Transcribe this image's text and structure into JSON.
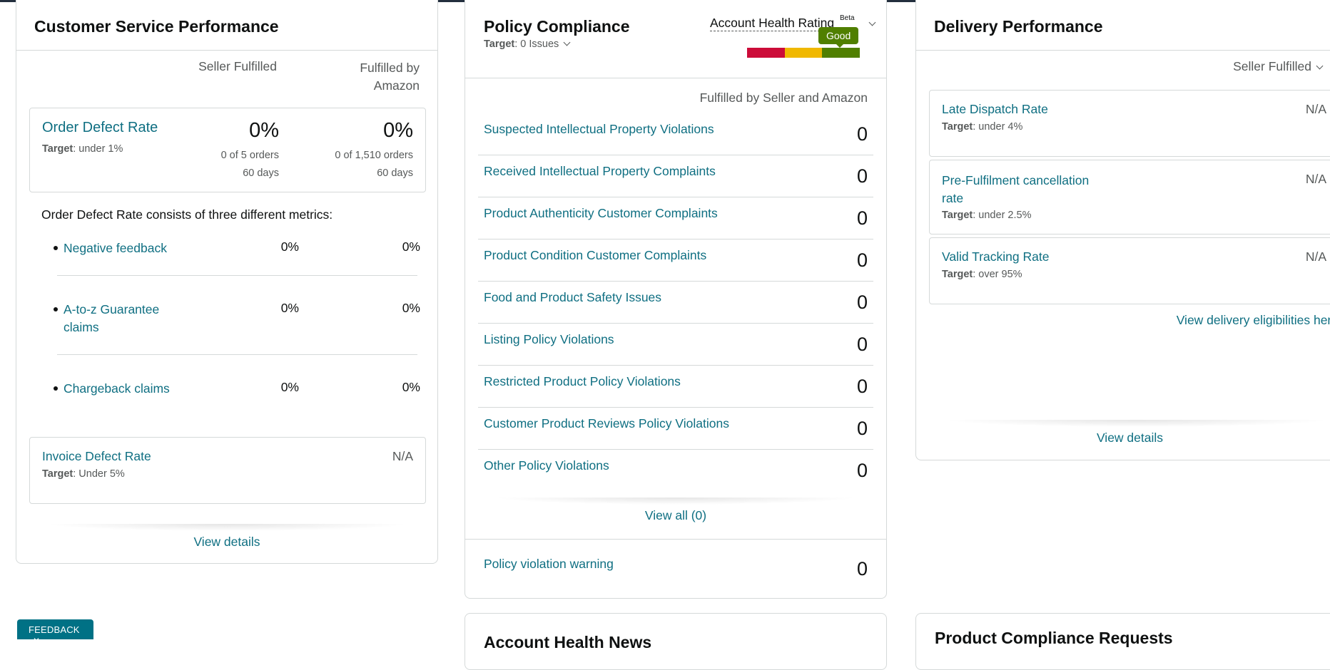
{
  "customer_service": {
    "title": "Customer Service Performance",
    "col_seller": "Seller Fulfilled",
    "col_amazon_line1": "Fulfilled by",
    "col_amazon_line2": "Amazon",
    "odr": {
      "label": "Order Defect Rate",
      "target_label": "Target",
      "target_value": ": under 1%",
      "seller_pct": "0%",
      "seller_orders": "0 of 5 orders",
      "seller_days": "60 days",
      "amazon_pct": "0%",
      "amazon_orders": "0 of 1,510 orders",
      "amazon_days": "60 days"
    },
    "consists_text": "Order Defect Rate consists of three different metrics:",
    "metrics": [
      {
        "label": "Negative feedback",
        "seller": "0%",
        "amazon": "0%"
      },
      {
        "label": "A-to-z Guarantee claims",
        "seller": "0%",
        "amazon": "0%"
      },
      {
        "label": "Chargeback claims",
        "seller": "0%",
        "amazon": "0%"
      }
    ],
    "invoice": {
      "label": "Invoice Defect Rate",
      "target_label": "Target",
      "target_value": ": Under 5%",
      "value": "N/A"
    },
    "view_details": "View details"
  },
  "policy": {
    "title": "Policy Compliance",
    "target_label": "Target",
    "target_value": ": 0 Issues",
    "ahr_label": "Account Health Rating",
    "ahr_beta": "Beta",
    "ahr_status": "Good",
    "ahr_colors": [
      "#cc0c39",
      "#f0b800",
      "#507f00"
    ],
    "column_header": "Fulfilled by Seller and Amazon",
    "rows": [
      {
        "label": "Suspected Intellectual Property Violations",
        "value": "0"
      },
      {
        "label": "Received Intellectual Property Complaints",
        "value": "0"
      },
      {
        "label": "Product Authenticity Customer Complaints",
        "value": "0"
      },
      {
        "label": "Product Condition Customer Complaints",
        "value": "0"
      },
      {
        "label": "Food and Product Safety Issues",
        "value": "0"
      },
      {
        "label": "Listing Policy Violations",
        "value": "0"
      },
      {
        "label": "Restricted Product Policy Violations",
        "value": "0"
      },
      {
        "label": "Customer Product Reviews Policy Violations",
        "value": "0"
      },
      {
        "label": "Other Policy Violations",
        "value": "0"
      }
    ],
    "view_all": "View all (0)",
    "warning_label": "Policy violation warning",
    "warning_value": "0"
  },
  "delivery": {
    "title": "Delivery Performance",
    "filter": "Seller Fulfilled",
    "metrics": [
      {
        "label": "Late Dispatch Rate",
        "target_label": "Target",
        "target_value": ": under 4%",
        "value": "N/A"
      },
      {
        "label": "Pre-Fulfilment cancellation rate",
        "target_label": "Target",
        "target_value": ": under 2.5%",
        "value": "N/A"
      },
      {
        "label": "Valid Tracking Rate",
        "target_label": "Target",
        "target_value": ": over 95%",
        "value": "N/A"
      }
    ],
    "eligibilities_link": "View delivery eligibilities here",
    "view_details": "View details"
  },
  "bottom": {
    "account_health_news": "Account Health News",
    "product_compliance": "Product Compliance Requests"
  },
  "feedback": {
    "label": "FEEDBACK",
    "close": "✕"
  }
}
